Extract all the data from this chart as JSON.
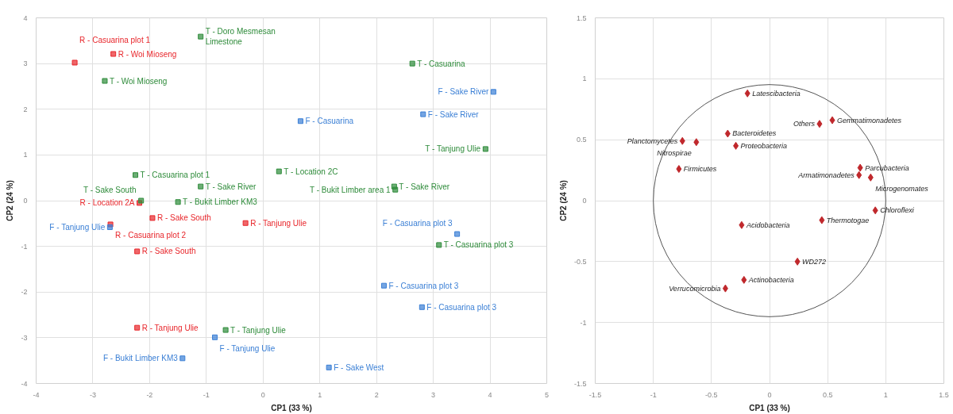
{
  "chart_data": [
    {
      "type": "scatter",
      "xlabel": "CP1 (33 %)",
      "ylabel": "CP2 (24 %)",
      "xlim": [
        -4,
        5
      ],
      "ylim": [
        -4,
        4
      ],
      "xticks": [
        -4,
        -3,
        -2,
        -1,
        0,
        1,
        2,
        3,
        4,
        5
      ],
      "yticks": [
        -4,
        -3,
        -2,
        -1,
        0,
        1,
        2,
        3,
        4
      ],
      "grid": true,
      "marker": "square",
      "series": [
        {
          "color": "#e8262b",
          "x": [
            -2.64,
            -3.32,
            -2.18,
            -1.95,
            -2.69,
            -2.22,
            -0.31,
            -2.22
          ],
          "values": [
            3.21,
            3.02,
            -0.05,
            -0.38,
            -0.52,
            -1.11,
            -0.49,
            -2.78
          ],
          "value_labels": [
            "R - Woi Mioseng",
            "R - Casuarina plot 1",
            "R - Location 2A",
            "R - Sake South",
            "R - Casuarina plot 2",
            "R - Sake South",
            "R - Tanjung Ulie",
            "R - Tanjung Ulie"
          ]
        },
        {
          "color": "#2e8b3a",
          "x": [
            -1.1,
            -2.79,
            -2.25,
            -1.1,
            -2.15,
            -1.5,
            0.28,
            2.63,
            3.92,
            2.31,
            2.33,
            3.1,
            -0.66
          ],
          "values": [
            3.59,
            2.62,
            0.56,
            0.31,
            0.0,
            -0.03,
            0.64,
            3.0,
            1.13,
            0.31,
            0.24,
            -0.97,
            -2.83
          ],
          "value_labels": [
            "T - Doro Mesmesan\nLimestone",
            "T - Woi Mioseng",
            "T - Casuarina plot 1",
            "T - Sake River",
            "T - Sake South",
            "T - Bukit Limber KM3",
            "T - Location 2C",
            "T - Casuarina",
            "T - Tanjung Ulie",
            "T - Sake River",
            "T - Bukit Limber area 1",
            "T - Casuarina plot 3",
            "T - Tanjung Ulie"
          ]
        },
        {
          "color": "#3a7fd5",
          "x": [
            0.66,
            4.06,
            2.82,
            -2.7,
            3.42,
            2.13,
            2.8,
            -0.85,
            -1.42,
            1.16
          ],
          "values": [
            1.74,
            2.38,
            1.89,
            -0.58,
            -0.73,
            -1.86,
            -2.33,
            -2.99,
            -3.45,
            -3.65
          ],
          "value_labels": [
            "F - Casuarina",
            "F - Sake River",
            "F - Sake River",
            "F - Tanjung Ulie",
            "F - Casuarina plot 3",
            "F - Casuarina plot 3",
            "F - Casuarina plot 3",
            "F - Tanjung Ulie",
            "F - Bukit Limber KM3",
            "F - Sake West"
          ]
        }
      ]
    },
    {
      "type": "scatter",
      "xlabel": "CP1 (33 %)",
      "ylabel": "CP2 (24 %)",
      "xlim": [
        -1.5,
        1.5
      ],
      "ylim": [
        -1.5,
        1.5
      ],
      "xticks": [
        -1.5,
        -1,
        -0.5,
        0,
        0.5,
        1,
        1.5
      ],
      "yticks": [
        -1.5,
        -1,
        -0.5,
        0,
        0.5,
        1,
        1.5
      ],
      "grid": true,
      "marker": "diamond",
      "series": [
        {
          "color": "#c0282c",
          "x": [
            -0.19,
            0.54,
            0.43,
            -0.36,
            -0.75,
            -0.63,
            -0.29,
            -0.78,
            0.78,
            0.77,
            0.87,
            0.91,
            0.45,
            -0.24,
            0.24,
            -0.22,
            -0.38
          ],
          "values": [
            0.88,
            0.66,
            0.63,
            0.55,
            0.49,
            0.48,
            0.45,
            0.26,
            0.27,
            0.21,
            0.19,
            -0.08,
            -0.16,
            -0.2,
            -0.5,
            -0.65,
            -0.72
          ],
          "value_labels": [
            "Latescibacteria",
            "Gemmatimonadetes",
            "Others",
            "Bacteroidetes",
            "Planctomycetes",
            "Nitrospirae",
            "Proteobacteria",
            "Firmicutes",
            "Parcubacteria",
            "Armatimonadetes",
            "Microgenomates",
            "Chloroflexi",
            "Thermotogae",
            "Acidobacteria",
            "WD272",
            "Actinobacteria",
            "Verrucomicrobia"
          ]
        }
      ]
    }
  ]
}
